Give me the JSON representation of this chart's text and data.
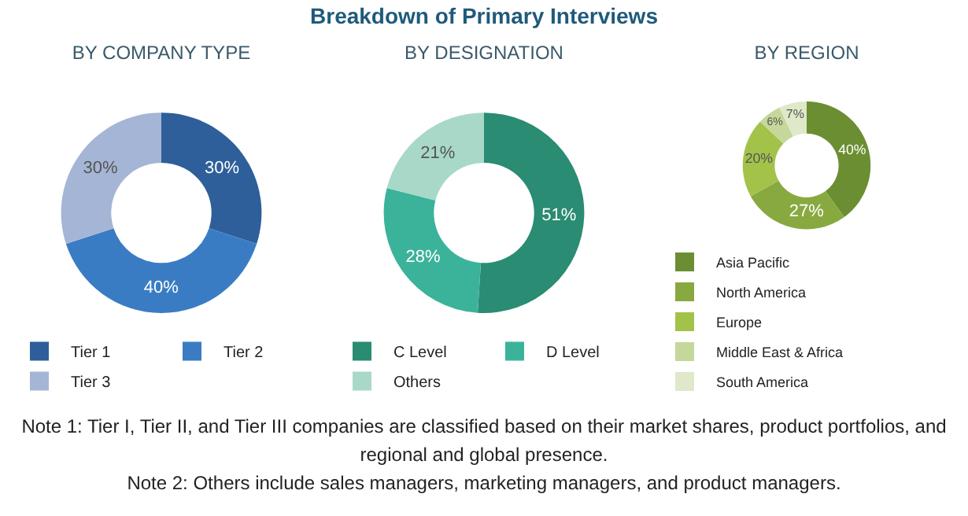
{
  "chart_data": [
    {
      "type": "donut",
      "title": "BY COMPANY TYPE",
      "categories": [
        "Tier 1",
        "Tier 2",
        "Tier 3"
      ],
      "values": [
        30,
        40,
        30
      ],
      "value_labels": [
        "30%",
        "40%",
        "30%"
      ],
      "colors": [
        "#2e5f9a",
        "#3a7cc4",
        "#a5b5d6"
      ],
      "legend": "bottom",
      "annotations": [
        "Note 1: Tier I, Tier II, and Tier III companies are classified based on their market shares, product portfolios, and regional and global presence.",
        "Note 2: Others include sales managers, marketing managers, and product managers."
      ]
    },
    {
      "type": "donut",
      "title": "Breakdown of Primary Interviews",
      "subtitle": "BY DESIGNATION",
      "categories": [
        "C Level",
        "D Level",
        "Others"
      ],
      "values": [
        51,
        28,
        21
      ],
      "value_labels": [
        "51%",
        "28%",
        "21%"
      ],
      "colors": [
        "#2a8c72",
        "#3bb39a",
        "#a8d8c8"
      ],
      "legend": "bottom"
    },
    {
      "type": "donut",
      "title": "BY REGION",
      "categories": [
        "Asia Pacific",
        "North America",
        "Europe",
        "Middle East & Africa",
        "South America"
      ],
      "values": [
        40,
        27,
        20,
        6,
        7
      ],
      "value_labels": [
        "40%",
        "27%",
        "20%",
        "6%",
        "7%"
      ],
      "colors": [
        "#6b8e32",
        "#88a93f",
        "#a3c24a",
        "#c5d79a",
        "#dfe8c8"
      ],
      "legend": "bottom"
    }
  ]
}
